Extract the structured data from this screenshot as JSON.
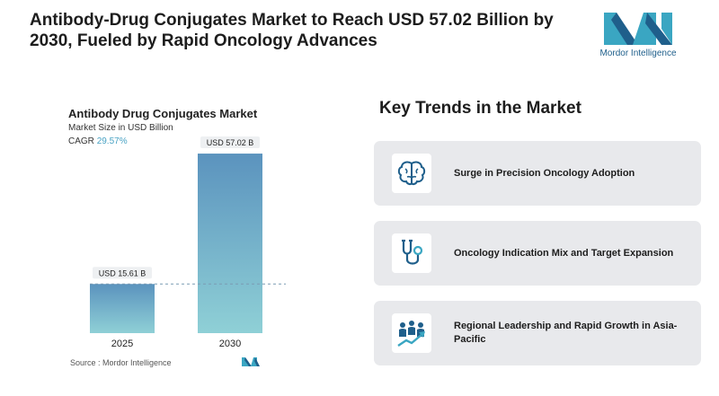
{
  "headline": {
    "line1": "Antibody-Drug Conjugates Market to Reach USD 57.02 Billion by",
    "line2": "2030, Fueled by Rapid Oncology Advances"
  },
  "brand": {
    "name": "Mordor Intelligence",
    "color": "#1f5f8b",
    "accent": "#3aa6c2"
  },
  "chart_data": {
    "type": "bar",
    "title": "Antibody Drug Conjugates Market",
    "subtitle": "Market Size in USD Billion",
    "cagr_label": "CAGR",
    "cagr_value": "29.57%",
    "categories": [
      "2025",
      "2030"
    ],
    "values": [
      15.61,
      57.02
    ],
    "data_labels": [
      "USD 15.61 B",
      "USD 57.02 B"
    ],
    "ylim": [
      0,
      60
    ],
    "grid": false,
    "reference_line": "dashed line at 2025 value",
    "bar_gradient": [
      "#5b93be",
      "#8fd0d6"
    ]
  },
  "source": "Source :  Mordor Intelligence",
  "trends": {
    "title": "Key Trends in the Market",
    "items": [
      {
        "label": "Surge in Precision Oncology Adoption",
        "icon": "brain-icon"
      },
      {
        "label": "Oncology Indication Mix and Target Expansion",
        "icon": "stethoscope-icon"
      },
      {
        "label": "Regional Leadership and Rapid Growth in Asia-Pacific",
        "icon": "growth-people-icon"
      }
    ]
  }
}
